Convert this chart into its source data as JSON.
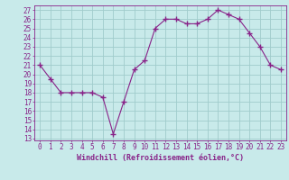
{
  "hours": [
    0,
    1,
    2,
    3,
    4,
    5,
    6,
    7,
    8,
    9,
    10,
    11,
    12,
    13,
    14,
    15,
    16,
    17,
    18,
    19,
    20,
    21,
    22,
    23
  ],
  "values": [
    21,
    19.5,
    18,
    18,
    18,
    18,
    17.5,
    13.5,
    17,
    20.5,
    21.5,
    25,
    26,
    26,
    25.5,
    25.5,
    26,
    27,
    26.5,
    26,
    24.5,
    23,
    21,
    20.5
  ],
  "line_color": "#882288",
  "marker": "+",
  "bg_color": "#c8eaea",
  "grid_color": "#a0cccc",
  "ylabel_vals": [
    13,
    14,
    15,
    16,
    17,
    18,
    19,
    20,
    21,
    22,
    23,
    24,
    25,
    26,
    27
  ],
  "ylim": [
    12.8,
    27.5
  ],
  "xlim": [
    -0.5,
    23.5
  ],
  "xlabel": "Windchill (Refroidissement éolien,°C)",
  "tick_color": "#882288",
  "label_fontsize": 6.0,
  "axis_fontsize": 5.5
}
